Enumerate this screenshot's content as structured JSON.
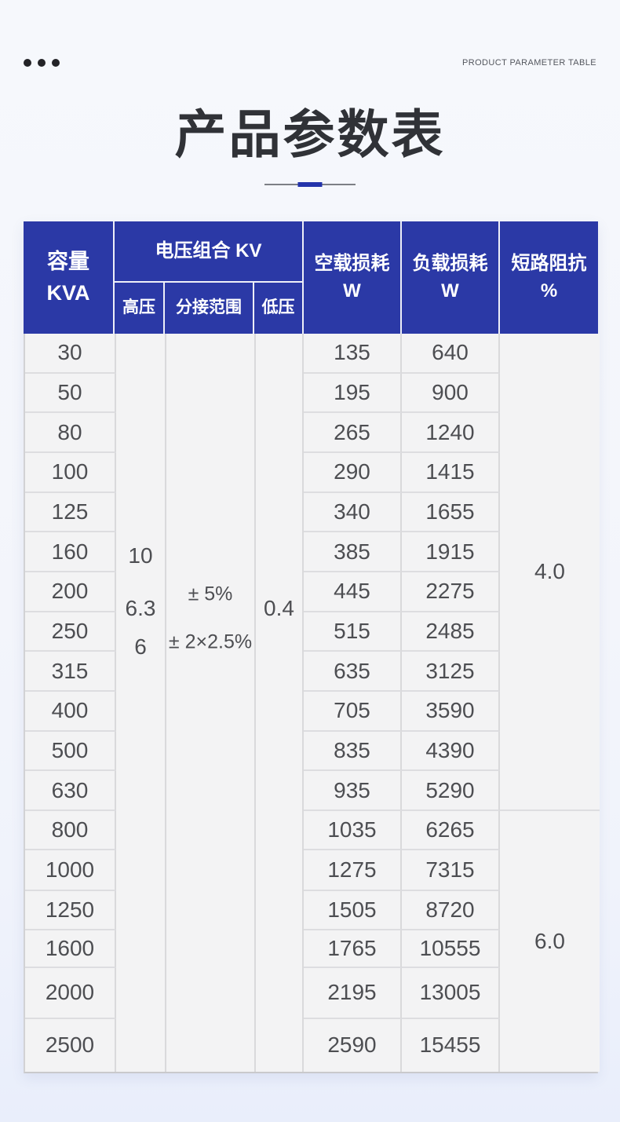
{
  "topbar": {
    "watermark": "PRODUCT PARAMETER TABLE"
  },
  "chart_data": {
    "type": "table",
    "title": "产品参数表",
    "header": {
      "capacity_line1": "容量",
      "capacity_line2": "KVA",
      "voltage_group": "电压组合 KV",
      "high_voltage": "高压",
      "tap_range": "分接范围",
      "low_voltage": "低压",
      "no_load_line1": "空载损耗",
      "no_load_line2": "W",
      "load_line1": "负载损耗",
      "load_line2": "W",
      "impedance_line1": "短路阻抗",
      "impedance_line2": "%"
    },
    "merged": {
      "high_voltage_values": [
        "10",
        "6.3",
        "6"
      ],
      "tap_range_values": [
        "± 5%",
        "± 2×2.5%"
      ],
      "low_voltage_value": "0.4",
      "impedance_groups": [
        {
          "value": "4.0",
          "row_span": 12
        },
        {
          "value": "6.0",
          "row_span": 6
        }
      ]
    },
    "rows": [
      {
        "kva": "30",
        "no_load_w": "135",
        "load_w": "640"
      },
      {
        "kva": "50",
        "no_load_w": "195",
        "load_w": "900"
      },
      {
        "kva": "80",
        "no_load_w": "265",
        "load_w": "1240"
      },
      {
        "kva": "100",
        "no_load_w": "290",
        "load_w": "1415"
      },
      {
        "kva": "125",
        "no_load_w": "340",
        "load_w": "1655"
      },
      {
        "kva": "160",
        "no_load_w": "385",
        "load_w": "1915"
      },
      {
        "kva": "200",
        "no_load_w": "445",
        "load_w": "2275"
      },
      {
        "kva": "250",
        "no_load_w": "515",
        "load_w": "2485"
      },
      {
        "kva": "315",
        "no_load_w": "635",
        "load_w": "3125"
      },
      {
        "kva": "400",
        "no_load_w": "705",
        "load_w": "3590"
      },
      {
        "kva": "500",
        "no_load_w": "835",
        "load_w": "4390"
      },
      {
        "kva": "630",
        "no_load_w": "935",
        "load_w": "5290"
      },
      {
        "kva": "800",
        "no_load_w": "1035",
        "load_w": "6265"
      },
      {
        "kva": "1000",
        "no_load_w": "1275",
        "load_w": "7315"
      },
      {
        "kva": "1250",
        "no_load_w": "1505",
        "load_w": "8720"
      },
      {
        "kva": "1600",
        "no_load_w": "1765",
        "load_w": "10555"
      },
      {
        "kva": "2000",
        "no_load_w": "2195",
        "load_w": "13005"
      },
      {
        "kva": "2500",
        "no_load_w": "2590",
        "load_w": "15455"
      }
    ],
    "colors": {
      "header_blue": "#2b39a6",
      "accent_blue": "#2434ab",
      "cell_bg": "#f3f3f4",
      "cell_border": "#d9d9db",
      "page_bg_bottom": "#e9eefb",
      "data_text": "#4d4e52",
      "title_text": "#303237"
    }
  }
}
